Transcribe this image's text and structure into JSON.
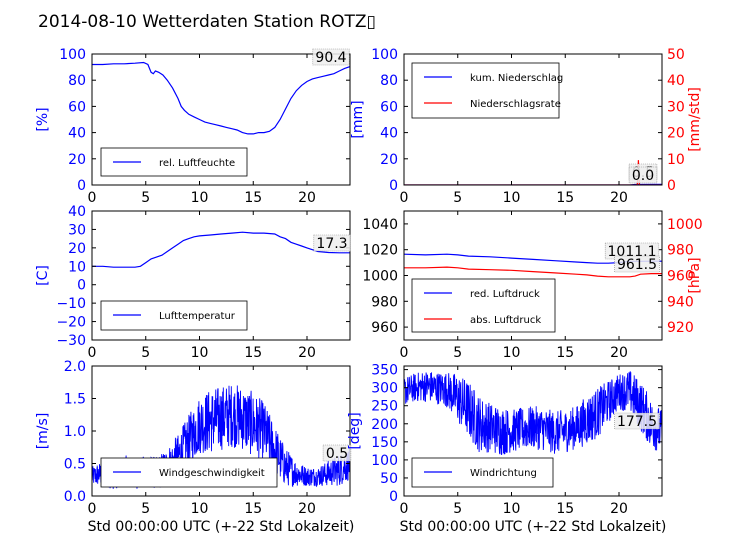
{
  "figure": {
    "title": "2014-08-10 Wetterdaten Station ROTZ▯"
  },
  "colors": {
    "primary": "#0000ff",
    "secondary": "#ff0000",
    "frame": "#000000",
    "text": "#000000"
  },
  "chart_data": [
    {
      "id": "humidity",
      "type": "line",
      "xlim": [
        0,
        24
      ],
      "xticks": [
        0,
        5,
        10,
        15,
        20
      ],
      "xlabel": "",
      "ylim": [
        0,
        100
      ],
      "yticks": [
        0,
        20,
        40,
        60,
        80,
        100
      ],
      "ylabel": "[%]",
      "legend_location": "lower-left",
      "series": [
        {
          "name": "rel. Luftfeuchte",
          "color": "#0000ff",
          "axis": "left",
          "x": [
            0,
            1,
            2,
            3,
            4,
            4.8,
            5.2,
            5.5,
            5.7,
            5.9,
            6.2,
            6.6,
            7,
            7.5,
            8,
            8.3,
            8.6,
            9,
            9.5,
            10,
            10.5,
            11,
            11.5,
            12,
            12.5,
            13,
            13.5,
            14,
            14.5,
            15,
            15.5,
            16,
            16.5,
            17,
            17.5,
            18,
            18.5,
            19,
            19.5,
            20,
            20.5,
            21,
            21.5,
            22,
            22.5,
            23,
            23.5,
            24
          ],
          "y": [
            92,
            92,
            92.5,
            92.5,
            93,
            93.5,
            92,
            86,
            85,
            87,
            86,
            84,
            80,
            74,
            66,
            60,
            57,
            54,
            52,
            50,
            48,
            47,
            46,
            45,
            44,
            43,
            42,
            40,
            39,
            39,
            40,
            40,
            41,
            44,
            50,
            58,
            66,
            72,
            76,
            79,
            81,
            82,
            83,
            84,
            85,
            87,
            89,
            90.4
          ]
        }
      ],
      "annotations": [
        "90.4"
      ]
    },
    {
      "id": "precipitation",
      "type": "line",
      "xlim": [
        0,
        24
      ],
      "xticks": [
        0,
        5,
        10,
        15,
        20
      ],
      "xlabel": "",
      "ylim": [
        0,
        100
      ],
      "yticks": [
        0,
        20,
        40,
        60,
        80,
        100
      ],
      "ylabel": "[mm]",
      "y2lim": [
        0,
        50
      ],
      "y2ticks": [
        0,
        10,
        20,
        30,
        40,
        50
      ],
      "y2label": "[mm/std]",
      "legend_location": "upper-left",
      "series": [
        {
          "name": "kum. Niederschlag",
          "color": "#0000ff",
          "axis": "left",
          "x": [
            0,
            21,
            21.5,
            24
          ],
          "y": [
            0,
            0,
            0.4,
            0.5
          ]
        },
        {
          "name": "Niederschlagsrate",
          "color": "#ff0000",
          "axis": "right",
          "x": [
            0,
            21.7,
            21.8,
            21.9,
            22,
            24
          ],
          "y": [
            0,
            0,
            9.5,
            0,
            0,
            0
          ]
        }
      ],
      "annotations": [
        "0.5",
        "0.0"
      ]
    },
    {
      "id": "temperature",
      "type": "line",
      "xlim": [
        0,
        24
      ],
      "xticks": [
        0,
        5,
        10,
        15,
        20
      ],
      "xlabel": "",
      "ylim": [
        -30,
        40
      ],
      "yticks": [
        -30,
        -20,
        -10,
        0,
        10,
        20,
        30,
        40
      ],
      "ylabel": "[C]",
      "legend_location": "lower-left",
      "series": [
        {
          "name": "Lufttemperatur",
          "color": "#0000ff",
          "axis": "left",
          "x": [
            0,
            1,
            2,
            3,
            4,
            4.5,
            5,
            5.5,
            6,
            6.5,
            7,
            7.5,
            8,
            8.5,
            9,
            9.5,
            10,
            11,
            12,
            13,
            14,
            15,
            16,
            17,
            17.5,
            18,
            18.5,
            19,
            19.5,
            20,
            20.5,
            21,
            22,
            23,
            24
          ],
          "y": [
            10,
            10,
            9.5,
            9.5,
            9.5,
            10,
            12,
            14,
            15,
            16,
            18,
            20,
            22,
            24,
            25,
            26,
            26.5,
            27,
            27.5,
            28,
            28.5,
            28,
            28,
            27.5,
            26,
            25,
            23,
            22,
            21,
            20,
            19,
            18,
            17.5,
            17.3,
            17.3
          ]
        }
      ],
      "annotations": [
        "17.3"
      ]
    },
    {
      "id": "pressure",
      "type": "line",
      "xlim": [
        0,
        24
      ],
      "xticks": [
        0,
        5,
        10,
        15,
        20
      ],
      "xlabel": "",
      "ylim": [
        950,
        1050
      ],
      "yticks": [
        960,
        980,
        1000,
        1020,
        1040
      ],
      "ylabel": "",
      "y2lim": [
        910,
        1010
      ],
      "y2ticks": [
        920,
        940,
        960,
        980,
        1000
      ],
      "y2label": "[hPa]",
      "legend_location": "lower-left",
      "series": [
        {
          "name": "red. Luftdruck",
          "color": "#0000ff",
          "axis": "left",
          "x": [
            0,
            2,
            4,
            5,
            6,
            8,
            10,
            12,
            14,
            16,
            17,
            18,
            19,
            20,
            21,
            22,
            23,
            24
          ],
          "y": [
            1016.5,
            1016,
            1016.5,
            1016,
            1015,
            1014.5,
            1013.5,
            1012.5,
            1011.5,
            1010.5,
            1010,
            1009.5,
            1009.5,
            1010,
            1011,
            1011,
            1011.1,
            1011.1
          ]
        },
        {
          "name": "abs. Luftdruck",
          "color": "#ff0000",
          "axis": "right",
          "x": [
            0,
            2,
            4,
            5,
            6,
            8,
            10,
            12,
            14,
            16,
            17,
            18,
            19,
            20,
            21,
            21.5,
            22,
            23,
            24
          ],
          "y": [
            966,
            966,
            966.5,
            966,
            965,
            964.5,
            964,
            963,
            962,
            961,
            960.5,
            959.5,
            959,
            959,
            959,
            959.5,
            961,
            961.5,
            961.5
          ]
        }
      ],
      "annotations": [
        "1011.1",
        "961.5"
      ]
    },
    {
      "id": "windspeed",
      "type": "line",
      "xlim": [
        0,
        24
      ],
      "xticks": [
        0,
        5,
        10,
        15,
        20
      ],
      "xlabel": "Std 00:00:00 UTC (+-22 Std Lokalzeit)",
      "ylim": [
        0,
        2
      ],
      "yticks": [
        0.0,
        0.5,
        1.0,
        1.5,
        2.0
      ],
      "ylabel": "[m/s]",
      "legend_location": "lower-left",
      "series": [
        {
          "name": "Windgeschwindigkeit",
          "color": "#0000ff",
          "axis": "left",
          "x": [
            0,
            1,
            2,
            3,
            4,
            5,
            6,
            7,
            8,
            9,
            10,
            11,
            12,
            13,
            14,
            15,
            16,
            17,
            18,
            19,
            20,
            21,
            22,
            23,
            24
          ],
          "y": [
            0.3,
            0.35,
            0.3,
            0.4,
            0.3,
            0.4,
            0.35,
            0.45,
            0.6,
            0.85,
            1.1,
            1.15,
            1.2,
            1.25,
            1.2,
            1.1,
            1.0,
            0.7,
            0.45,
            0.35,
            0.3,
            0.3,
            0.35,
            0.4,
            0.5
          ],
          "noise": [
            0.15,
            0.2,
            0.2,
            0.25,
            0.2,
            0.25,
            0.25,
            0.3,
            0.35,
            0.4,
            0.45,
            0.5,
            0.5,
            0.5,
            0.5,
            0.5,
            0.45,
            0.4,
            0.3,
            0.2,
            0.15,
            0.15,
            0.2,
            0.25,
            0.25
          ]
        }
      ],
      "annotations": [
        "0.5"
      ]
    },
    {
      "id": "winddirection",
      "type": "line",
      "xlim": [
        0,
        24
      ],
      "xticks": [
        0,
        5,
        10,
        15,
        20
      ],
      "xlabel": "Std 00:00:00 UTC (+-22 Std Lokalzeit)",
      "ylim": [
        0,
        360
      ],
      "yticks": [
        0,
        50,
        100,
        150,
        200,
        250,
        300,
        350
      ],
      "ylabel": "[deg]",
      "legend_location": "lower-left",
      "series": [
        {
          "name": "Windrichtung",
          "color": "#0000ff",
          "axis": "left",
          "x": [
            0,
            1,
            2,
            3,
            4,
            5,
            6,
            7,
            8,
            9,
            10,
            11,
            12,
            13,
            14,
            15,
            16,
            17,
            18,
            19,
            20,
            21,
            22,
            23,
            24
          ],
          "y": [
            290,
            300,
            305,
            300,
            295,
            270,
            240,
            200,
            190,
            180,
            180,
            185,
            190,
            185,
            175,
            180,
            190,
            210,
            230,
            260,
            290,
            290,
            250,
            200,
            177.5
          ],
          "noise": [
            40,
            40,
            45,
            45,
            50,
            70,
            80,
            80,
            70,
            70,
            60,
            60,
            60,
            60,
            60,
            60,
            60,
            70,
            70,
            60,
            50,
            60,
            70,
            70,
            60
          ]
        }
      ],
      "annotations": [
        "177.5"
      ]
    }
  ]
}
